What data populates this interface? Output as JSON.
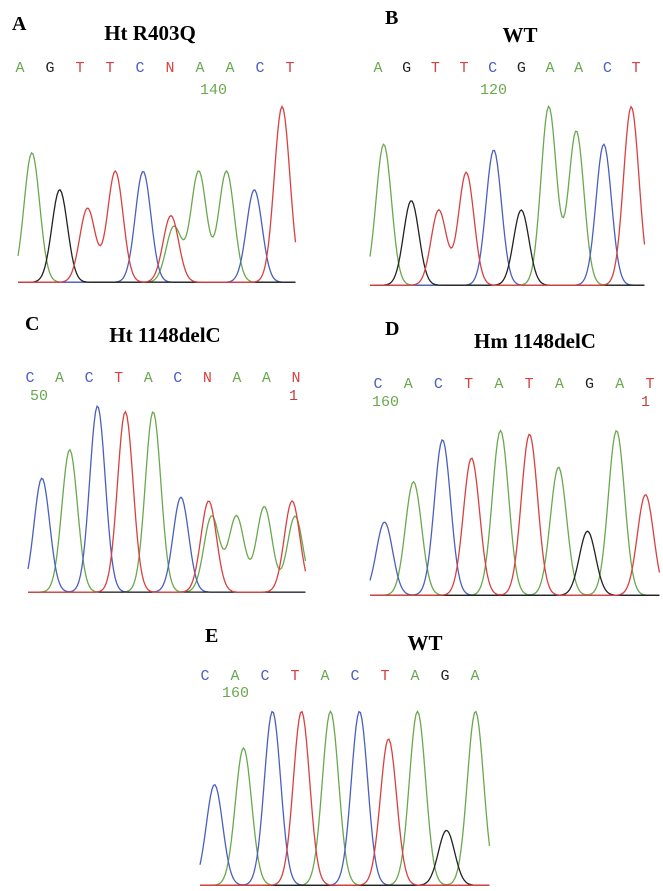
{
  "panels": [
    {
      "letter": "A",
      "title": "Ht R403Q",
      "bases": [
        "A",
        "G",
        "T",
        "T",
        "C",
        "N",
        "A",
        "A",
        "C",
        "T"
      ],
      "positions": [
        "140"
      ]
    },
    {
      "letter": "B",
      "title": "WT",
      "bases": [
        "A",
        "G",
        "T",
        "T",
        "C",
        "G",
        "A",
        "A",
        "C",
        "T"
      ],
      "positions": [
        "120"
      ]
    },
    {
      "letter": "C",
      "title": "Ht 1148delC",
      "bases": [
        "C",
        "A",
        "C",
        "T",
        "A",
        "C",
        "N",
        "A",
        "A",
        "N"
      ],
      "positions": [
        "50",
        "1"
      ]
    },
    {
      "letter": "D",
      "title": "Hm 1148delC",
      "bases": [
        "C",
        "A",
        "C",
        "T",
        "A",
        "T",
        "A",
        "G",
        "A",
        "T"
      ],
      "positions": [
        "160",
        "1"
      ]
    },
    {
      "letter": "E",
      "title": "WT",
      "bases": [
        "C",
        "A",
        "C",
        "T",
        "A",
        "C",
        "T",
        "A",
        "G",
        "A"
      ],
      "positions": [
        "160"
      ]
    }
  ]
}
